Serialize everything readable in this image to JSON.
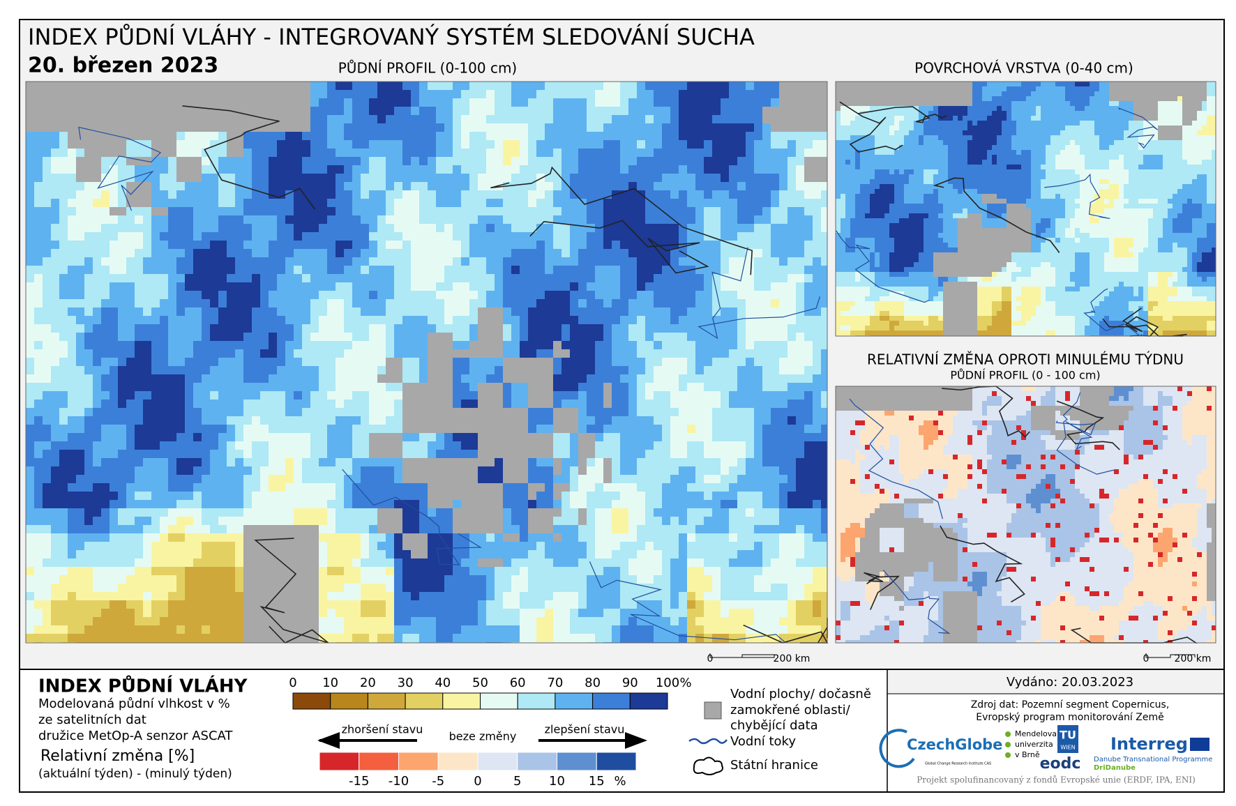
{
  "header": {
    "title": "INDEX PŮDNÍ VLÁHY - INTEGROVANÝ SYSTÉM SLEDOVÁNÍ SUCHA",
    "date": "20. březen 2023"
  },
  "maps": {
    "main": {
      "title": "PŮDNÍ PROFIL (0-100 cm)"
    },
    "surface": {
      "title": "POVRCHOVÁ VRSTVA (0-40 cm)"
    },
    "change": {
      "title": "RELATIVNÍ ZMĚNA OPROTI MINULÉMU TÝDNU",
      "subtitle": "PŮDNÍ PROFIL (0 - 100 cm)"
    }
  },
  "scalebar": {
    "start": "0",
    "end": "200 km"
  },
  "legend": {
    "title": "INDEX PŮDNÍ VLÁHY",
    "description": [
      "Modelovaná půdní vlhkost v %",
      "ze satelitních dat",
      "družice MetOp-A senzor ASCAT"
    ],
    "change_title": "Relativní změna [%]",
    "change_description": "(aktuální týden) - (minulý týden)",
    "moisture_scale": {
      "ticks": [
        0,
        10,
        20,
        30,
        40,
        50,
        60,
        70,
        80,
        90,
        100
      ],
      "unit": "%",
      "colors": [
        "#8b4a0a",
        "#b8861c",
        "#cfa83c",
        "#e3d062",
        "#f9f4a2",
        "#e6faf4",
        "#aee9f5",
        "#5fb2f0",
        "#3c7fd8",
        "#1c3a96"
      ]
    },
    "change_scale": {
      "ticks": [
        -15,
        -10,
        -5,
        0,
        5,
        10,
        15
      ],
      "unit": "%",
      "colors": [
        "#d7262a",
        "#f4603f",
        "#fca56f",
        "#fde6c8",
        "#dde6f2",
        "#a9c4e6",
        "#5e8fd1",
        "#1f4ea0"
      ],
      "worse": "zhoršení stavu",
      "none": "beze změny",
      "better": "zlepšení stavu"
    },
    "items": {
      "water": [
        "Vodní plochy/ dočasně",
        "zamokřené oblasti/",
        "chybějící data"
      ],
      "rivers": "Vodní toky",
      "borders": "Státní hranice"
    }
  },
  "footer": {
    "issued": "Vydáno: 20.03.2023",
    "source": [
      "Zdroj dat: Pozemní segment Copernicus,",
      "Evropský program monitorování Země"
    ],
    "logos": {
      "czechglobe": "CzechGlobe",
      "czechglobe_sub": "Global Change Research Institute CAS",
      "mendelu": [
        "Mendelova",
        "univerzita",
        "v Brně"
      ],
      "tu": [
        "TU",
        "WIEN"
      ],
      "eodc": "eodc",
      "interreg": "Interreg",
      "danube": "Danube Transnational Programme",
      "dridanube": "DriDanube"
    },
    "project": "Projekt spolufinancovaný z fondů Evropské unie (ERDF, IPA, ENI)"
  }
}
